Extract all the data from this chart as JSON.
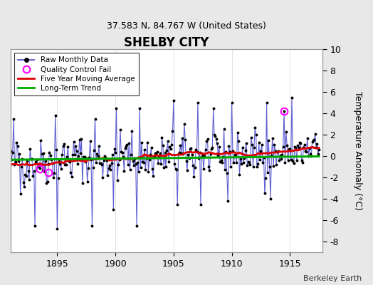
{
  "title": "SHELBY CITY",
  "subtitle": "37.583 N, 84.767 W (United States)",
  "ylabel": "Temperature Anomaly (°C)",
  "credit": "Berkeley Earth",
  "year_start": 1891.0,
  "year_end": 1917.5,
  "ylim": [
    -9,
    10
  ],
  "yticks": [
    -8,
    -6,
    -4,
    -2,
    0,
    2,
    4,
    6,
    8,
    10
  ],
  "xticks": [
    1895,
    1900,
    1905,
    1910,
    1915
  ],
  "bg_color": "#e8e8e8",
  "plot_bg_color": "#ffffff",
  "raw_line_color": "#4444cc",
  "raw_marker_color": "#000000",
  "ma_color": "#dd0000",
  "trend_color": "#00aa00",
  "qc_color": "#ff00ff",
  "qc_fail_times": [
    1893.5,
    1894.25,
    1914.5
  ],
  "qc_fail_values": [
    -1.2,
    -1.5,
    4.2
  ],
  "trend_intercept": -0.18,
  "trend_slope": 0.012
}
